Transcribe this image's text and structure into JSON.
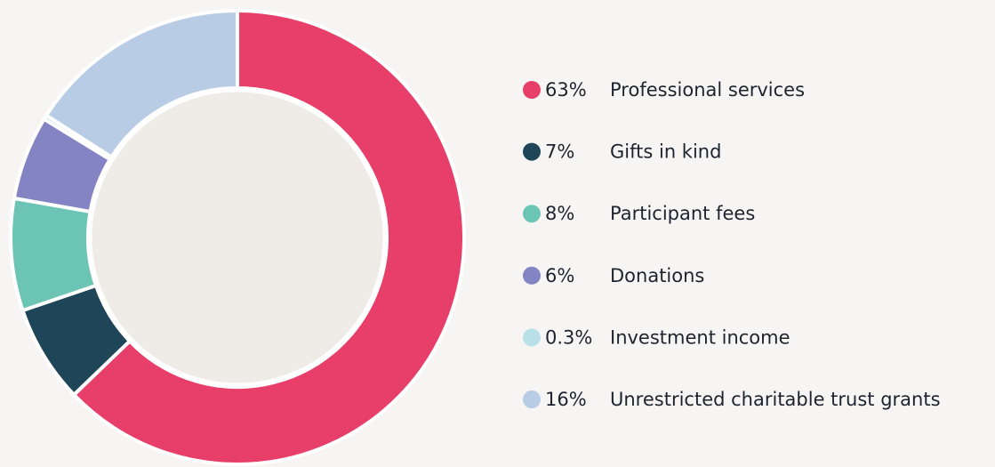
{
  "chart_data": {
    "type": "donut",
    "categories": [
      "Professional services",
      "Gifts in kind",
      "Participant fees",
      "Donations",
      "Investment income",
      "Unrestricted charitable trust grants"
    ],
    "values": [
      63,
      7,
      8,
      6,
      0.3,
      16
    ],
    "value_labels": [
      "63%",
      "7%",
      "8%",
      "6%",
      "0.3%",
      "16%"
    ],
    "colors": [
      "#e83f6a",
      "#1f4559",
      "#6cc4b4",
      "#8484c4",
      "#b8e0e6",
      "#b8cce6"
    ]
  }
}
